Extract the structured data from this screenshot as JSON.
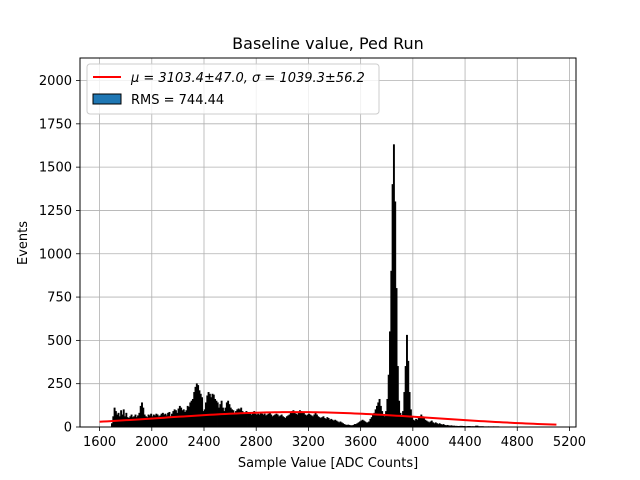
{
  "chart_data": {
    "type": "bar",
    "title": "Baseline value, Ped Run",
    "xlabel": "Sample Value [ADC Counts]",
    "ylabel": "Events",
    "xlim": [
      1450,
      5250
    ],
    "ylim": [
      0,
      2130
    ],
    "xticks": [
      1600,
      2000,
      2400,
      2800,
      3200,
      3600,
      4000,
      4400,
      4800,
      5200
    ],
    "yticks": [
      0,
      250,
      500,
      750,
      1000,
      1250,
      1500,
      1750,
      2000
    ],
    "grid": true,
    "legend_position": "top-left",
    "series": [
      {
        "name": "RMS = 744.44",
        "kind": "histogram",
        "color": "#000000",
        "legend_color": "#1f77b4",
        "points": [
          [
            1690,
            20
          ],
          [
            1700,
            60
          ],
          [
            1710,
            110
          ],
          [
            1720,
            90
          ],
          [
            1730,
            70
          ],
          [
            1740,
            80
          ],
          [
            1750,
            60
          ],
          [
            1760,
            95
          ],
          [
            1770,
            70
          ],
          [
            1780,
            100
          ],
          [
            1790,
            60
          ],
          [
            1800,
            80
          ],
          [
            1810,
            55
          ],
          [
            1820,
            50
          ],
          [
            1830,
            60
          ],
          [
            1840,
            70
          ],
          [
            1850,
            55
          ],
          [
            1860,
            60
          ],
          [
            1870,
            70
          ],
          [
            1880,
            55
          ],
          [
            1890,
            65
          ],
          [
            1900,
            80
          ],
          [
            1910,
            120
          ],
          [
            1920,
            140
          ],
          [
            1930,
            110
          ],
          [
            1940,
            70
          ],
          [
            1950,
            60
          ],
          [
            1960,
            55
          ],
          [
            1970,
            70
          ],
          [
            1980,
            65
          ],
          [
            1990,
            75
          ],
          [
            2000,
            60
          ],
          [
            2010,
            70
          ],
          [
            2020,
            65
          ],
          [
            2030,
            75
          ],
          [
            2040,
            70
          ],
          [
            2050,
            60
          ],
          [
            2060,
            65
          ],
          [
            2070,
            75
          ],
          [
            2080,
            80
          ],
          [
            2090,
            70
          ],
          [
            2100,
            75
          ],
          [
            2110,
            65
          ],
          [
            2120,
            80
          ],
          [
            2130,
            85
          ],
          [
            2140,
            60
          ],
          [
            2150,
            75
          ],
          [
            2160,
            90
          ],
          [
            2170,
            100
          ],
          [
            2180,
            95
          ],
          [
            2190,
            80
          ],
          [
            2200,
            105
          ],
          [
            2210,
            120
          ],
          [
            2220,
            110
          ],
          [
            2230,
            95
          ],
          [
            2240,
            100
          ],
          [
            2250,
            85
          ],
          [
            2260,
            95
          ],
          [
            2270,
            120
          ],
          [
            2280,
            115
          ],
          [
            2290,
            140
          ],
          [
            2300,
            150
          ],
          [
            2310,
            160
          ],
          [
            2320,
            200
          ],
          [
            2330,
            230
          ],
          [
            2340,
            250
          ],
          [
            2350,
            240
          ],
          [
            2360,
            210
          ],
          [
            2370,
            190
          ],
          [
            2380,
            170
          ],
          [
            2390,
            90
          ],
          [
            2400,
            100
          ],
          [
            2410,
            140
          ],
          [
            2420,
            180
          ],
          [
            2430,
            200
          ],
          [
            2440,
            190
          ],
          [
            2450,
            170
          ],
          [
            2460,
            190
          ],
          [
            2470,
            185
          ],
          [
            2480,
            160
          ],
          [
            2490,
            150
          ],
          [
            2500,
            140
          ],
          [
            2510,
            110
          ],
          [
            2520,
            130
          ],
          [
            2530,
            150
          ],
          [
            2540,
            110
          ],
          [
            2550,
            90
          ],
          [
            2560,
            110
          ],
          [
            2570,
            140
          ],
          [
            2580,
            150
          ],
          [
            2590,
            130
          ],
          [
            2600,
            110
          ],
          [
            2610,
            100
          ],
          [
            2620,
            95
          ],
          [
            2630,
            80
          ],
          [
            2640,
            90
          ],
          [
            2650,
            100
          ],
          [
            2660,
            105
          ],
          [
            2670,
            100
          ],
          [
            2680,
            110
          ],
          [
            2690,
            90
          ],
          [
            2700,
            80
          ],
          [
            2710,
            75
          ],
          [
            2720,
            90
          ],
          [
            2730,
            85
          ],
          [
            2740,
            75
          ],
          [
            2750,
            80
          ],
          [
            2760,
            70
          ],
          [
            2770,
            85
          ],
          [
            2780,
            90
          ],
          [
            2790,
            75
          ],
          [
            2800,
            70
          ],
          [
            2810,
            75
          ],
          [
            2820,
            70
          ],
          [
            2830,
            80
          ],
          [
            2840,
            75
          ],
          [
            2850,
            70
          ],
          [
            2860,
            75
          ],
          [
            2870,
            65
          ],
          [
            2880,
            70
          ],
          [
            2890,
            75
          ],
          [
            2900,
            80
          ],
          [
            2910,
            70
          ],
          [
            2920,
            60
          ],
          [
            2930,
            65
          ],
          [
            2940,
            70
          ],
          [
            2950,
            75
          ],
          [
            2960,
            70
          ],
          [
            2970,
            60
          ],
          [
            2980,
            65
          ],
          [
            2990,
            70
          ],
          [
            3000,
            60
          ],
          [
            3010,
            55
          ],
          [
            3020,
            50
          ],
          [
            3030,
            60
          ],
          [
            3040,
            65
          ],
          [
            3050,
            70
          ],
          [
            3060,
            80
          ],
          [
            3070,
            90
          ],
          [
            3080,
            95
          ],
          [
            3090,
            85
          ],
          [
            3100,
            75
          ],
          [
            3110,
            70
          ],
          [
            3120,
            80
          ],
          [
            3130,
            95
          ],
          [
            3140,
            90
          ],
          [
            3150,
            85
          ],
          [
            3160,
            80
          ],
          [
            3170,
            70
          ],
          [
            3180,
            65
          ],
          [
            3190,
            70
          ],
          [
            3200,
            75
          ],
          [
            3210,
            70
          ],
          [
            3220,
            65
          ],
          [
            3230,
            60
          ],
          [
            3240,
            70
          ],
          [
            3250,
            80
          ],
          [
            3260,
            70
          ],
          [
            3270,
            60
          ],
          [
            3280,
            55
          ],
          [
            3290,
            50
          ],
          [
            3300,
            55
          ],
          [
            3310,
            60
          ],
          [
            3320,
            50
          ],
          [
            3330,
            45
          ],
          [
            3340,
            55
          ],
          [
            3350,
            50
          ],
          [
            3360,
            40
          ],
          [
            3370,
            45
          ],
          [
            3380,
            40
          ],
          [
            3390,
            35
          ],
          [
            3400,
            40
          ],
          [
            3410,
            35
          ],
          [
            3420,
            30
          ],
          [
            3430,
            25
          ],
          [
            3440,
            30
          ],
          [
            3450,
            25
          ],
          [
            3460,
            20
          ],
          [
            3470,
            15
          ],
          [
            3480,
            12
          ],
          [
            3490,
            10
          ],
          [
            3500,
            12
          ],
          [
            3510,
            10
          ],
          [
            3520,
            8
          ],
          [
            3530,
            8
          ],
          [
            3540,
            10
          ],
          [
            3550,
            15
          ],
          [
            3560,
            15
          ],
          [
            3570,
            20
          ],
          [
            3580,
            25
          ],
          [
            3590,
            30
          ],
          [
            3600,
            35
          ],
          [
            3610,
            40
          ],
          [
            3620,
            35
          ],
          [
            3630,
            30
          ],
          [
            3640,
            25
          ],
          [
            3650,
            25
          ],
          [
            3660,
            30
          ],
          [
            3670,
            45
          ],
          [
            3680,
            55
          ],
          [
            3690,
            70
          ],
          [
            3700,
            80
          ],
          [
            3710,
            100
          ],
          [
            3720,
            120
          ],
          [
            3730,
            140
          ],
          [
            3740,
            160
          ],
          [
            3750,
            120
          ],
          [
            3760,
            90
          ],
          [
            3770,
            70
          ],
          [
            3780,
            60
          ],
          [
            3790,
            90
          ],
          [
            3800,
            160
          ],
          [
            3810,
            300
          ],
          [
            3820,
            550
          ],
          [
            3830,
            900
          ],
          [
            3840,
            1400
          ],
          [
            3850,
            1630
          ],
          [
            3860,
            1300
          ],
          [
            3870,
            800
          ],
          [
            3880,
            350
          ],
          [
            3890,
            150
          ],
          [
            3900,
            80
          ],
          [
            3910,
            60
          ],
          [
            3920,
            90
          ],
          [
            3930,
            200
          ],
          [
            3940,
            350
          ],
          [
            3950,
            530
          ],
          [
            3960,
            380
          ],
          [
            3970,
            200
          ],
          [
            3980,
            100
          ],
          [
            3990,
            60
          ],
          [
            4000,
            40
          ],
          [
            4010,
            35
          ],
          [
            4020,
            45
          ],
          [
            4030,
            40
          ],
          [
            4040,
            50
          ],
          [
            4050,
            60
          ],
          [
            4060,
            70
          ],
          [
            4070,
            60
          ],
          [
            4080,
            50
          ],
          [
            4090,
            40
          ],
          [
            4100,
            35
          ],
          [
            4110,
            30
          ],
          [
            4120,
            25
          ],
          [
            4130,
            30
          ],
          [
            4140,
            35
          ],
          [
            4150,
            25
          ],
          [
            4160,
            20
          ],
          [
            4170,
            25
          ],
          [
            4180,
            20
          ],
          [
            4190,
            15
          ],
          [
            4200,
            20
          ],
          [
            4210,
            15
          ],
          [
            4220,
            12
          ],
          [
            4230,
            15
          ],
          [
            4240,
            10
          ],
          [
            4250,
            8
          ],
          [
            4260,
            10
          ],
          [
            4270,
            8
          ],
          [
            4280,
            6
          ],
          [
            4290,
            8
          ],
          [
            4300,
            6
          ],
          [
            4320,
            5
          ],
          [
            4340,
            4
          ],
          [
            4360,
            5
          ],
          [
            4380,
            4
          ],
          [
            4400,
            3
          ],
          [
            4420,
            4
          ],
          [
            4440,
            3
          ],
          [
            4460,
            3
          ],
          [
            4480,
            6
          ],
          [
            4500,
            3
          ],
          [
            4540,
            2
          ],
          [
            4580,
            2
          ],
          [
            4620,
            2
          ],
          [
            4660,
            1
          ],
          [
            4700,
            1
          ],
          [
            4740,
            1
          ],
          [
            4780,
            1
          ],
          [
            4820,
            1
          ],
          [
            4860,
            1
          ],
          [
            4900,
            0
          ],
          [
            5100,
            0
          ]
        ]
      },
      {
        "name": "$\\mu = 3103.4 \\pm 47.0, \\sigma = 1039.3 \\pm 56.2$",
        "kind": "gaussian_fit",
        "color": "#ff0000",
        "mu": 3103.4,
        "sigma": 1039.3,
        "amplitude": 86,
        "x_range": [
          1600,
          5100
        ]
      }
    ]
  },
  "legend": {
    "fit_prefix": "μ = 3103.4±47.0, ",
    "fit_suffix": "σ = 1039.3±56.2",
    "hist_label": "RMS = 744.44"
  }
}
